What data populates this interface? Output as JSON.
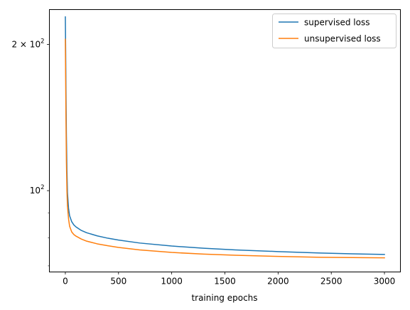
{
  "chart_data": {
    "type": "line",
    "title": "",
    "xlabel": "training epochs",
    "ylabel": "",
    "xscale": "linear",
    "yscale": "log",
    "xlim": [
      -150,
      3150
    ],
    "ylim": [
      68,
      236
    ],
    "grid": false,
    "legend_position": "top-right",
    "x_ticks": [
      0,
      500,
      1000,
      1500,
      2000,
      2500,
      3000
    ],
    "x_tick_labels": [
      "0",
      "500",
      "1000",
      "1500",
      "2000",
      "2500",
      "3000"
    ],
    "y_major_ticks": [
      100,
      200
    ],
    "y_major_tick_labels": [
      "10",
      "2 × 10"
    ],
    "y_major_tick_exponents": [
      "2",
      "2"
    ],
    "y_minor_ticks": [
      70,
      80,
      90
    ],
    "series": [
      {
        "name": "supervised loss",
        "color": "#1f77b4",
        "points": [
          [
            0,
            228
          ],
          [
            3,
            195
          ],
          [
            6,
            160
          ],
          [
            10,
            130
          ],
          [
            15,
            110
          ],
          [
            20,
            99
          ],
          [
            30,
            92
          ],
          [
            40,
            88.8
          ],
          [
            60,
            86.3
          ],
          [
            80,
            85
          ],
          [
            100,
            84.2
          ],
          [
            150,
            82.8
          ],
          [
            200,
            81.9
          ],
          [
            300,
            80.7
          ],
          [
            400,
            79.8
          ],
          [
            500,
            79.1
          ],
          [
            700,
            78.0
          ],
          [
            1000,
            76.9
          ],
          [
            1300,
            76.1
          ],
          [
            1600,
            75.5
          ],
          [
            2000,
            74.9
          ],
          [
            2400,
            74.4
          ],
          [
            2700,
            74.1
          ],
          [
            3000,
            73.9
          ]
        ]
      },
      {
        "name": "unsupervised loss",
        "color": "#ff7f0e",
        "points": [
          [
            0,
            205
          ],
          [
            3,
            170
          ],
          [
            6,
            140
          ],
          [
            10,
            115
          ],
          [
            15,
            100
          ],
          [
            20,
            93
          ],
          [
            30,
            87.5
          ],
          [
            40,
            84.5
          ],
          [
            60,
            82.2
          ],
          [
            80,
            81.2
          ],
          [
            100,
            80.6
          ],
          [
            150,
            79.5
          ],
          [
            200,
            78.7
          ],
          [
            300,
            77.7
          ],
          [
            400,
            77.0
          ],
          [
            500,
            76.4
          ],
          [
            700,
            75.5
          ],
          [
            1000,
            74.6
          ],
          [
            1300,
            74.0
          ],
          [
            1600,
            73.6
          ],
          [
            2000,
            73.2
          ],
          [
            2400,
            72.9
          ],
          [
            2700,
            72.8
          ],
          [
            3000,
            72.7
          ]
        ]
      }
    ]
  }
}
